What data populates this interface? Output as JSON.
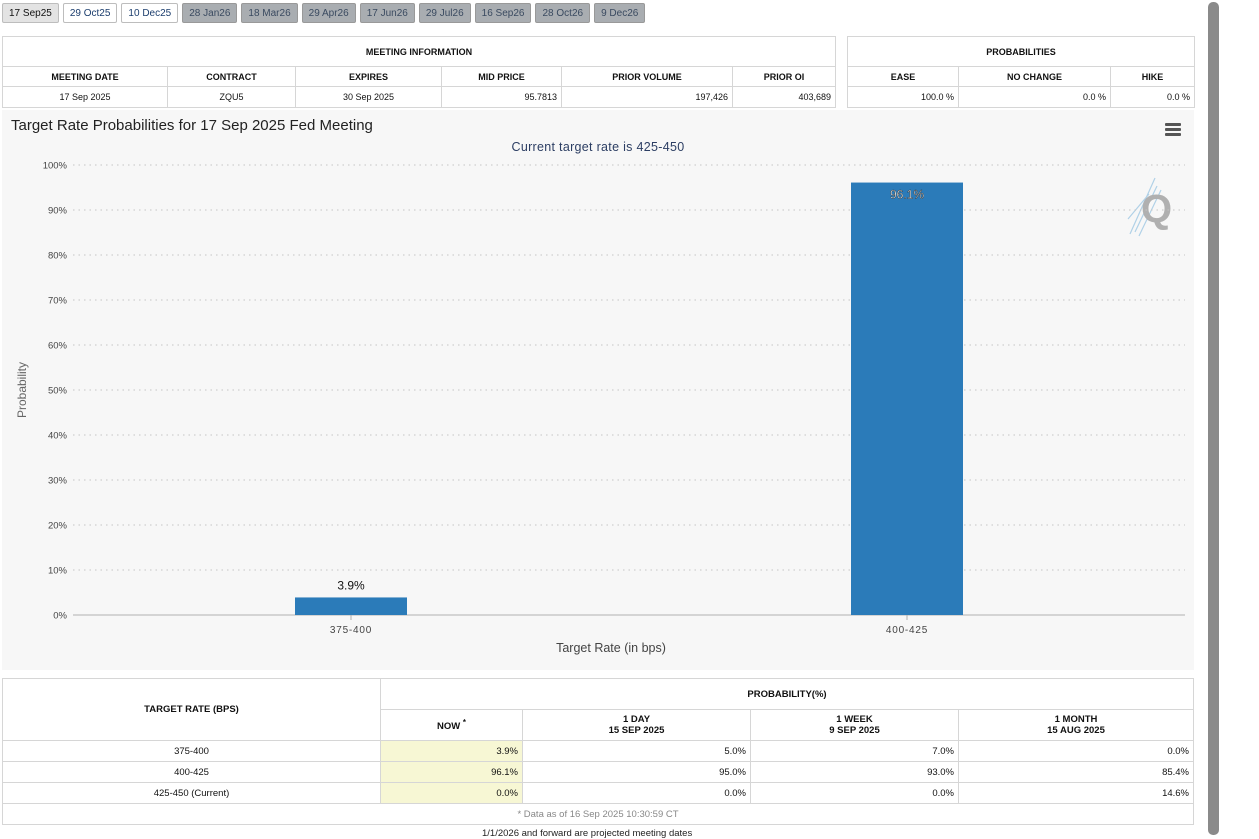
{
  "tabs": [
    {
      "label": "17 Sep25",
      "state": "selected"
    },
    {
      "label": "29 Oct25",
      "state": "available"
    },
    {
      "label": "10 Dec25",
      "state": "available"
    },
    {
      "label": "28 Jan26",
      "state": "disabled"
    },
    {
      "label": "18 Mar26",
      "state": "disabled"
    },
    {
      "label": "29 Apr26",
      "state": "disabled"
    },
    {
      "label": "17 Jun26",
      "state": "disabled"
    },
    {
      "label": "29 Jul26",
      "state": "disabled"
    },
    {
      "label": "16 Sep26",
      "state": "disabled"
    },
    {
      "label": "28 Oct26",
      "state": "disabled"
    },
    {
      "label": "9 Dec26",
      "state": "disabled"
    }
  ],
  "meeting_info": {
    "title": "MEETING INFORMATION",
    "headers": [
      "MEETING DATE",
      "CONTRACT",
      "EXPIRES",
      "MID PRICE",
      "PRIOR VOLUME",
      "PRIOR OI"
    ],
    "row": [
      "17 Sep 2025",
      "ZQU5",
      "30 Sep 2025",
      "95.7813",
      "197,426",
      "403,689"
    ]
  },
  "probabilities": {
    "title": "PROBABILITIES",
    "headers": [
      "EASE",
      "NO CHANGE",
      "HIKE"
    ],
    "row": [
      "100.0 %",
      "0.0 %",
      "0.0 %"
    ]
  },
  "chart": {
    "title": "Target Rate Probabilities for 17 Sep 2025 Fed Meeting",
    "subtitle": "Current target rate is 425-450"
  },
  "chart_data": {
    "type": "bar",
    "title": "Target Rate Probabilities for 17 Sep 2025 Fed Meeting",
    "subtitle": "Current target rate is 425-450",
    "categories": [
      "375-400",
      "400-425"
    ],
    "values": [
      3.9,
      96.1
    ],
    "data_labels": [
      "3.9%",
      "96.1%"
    ],
    "xlabel": "Target Rate (in bps)",
    "ylabel": "Probability",
    "ylim": [
      0,
      100
    ],
    "yticks": [
      "0%",
      "10%",
      "20%",
      "30%",
      "40%",
      "50%",
      "60%",
      "70%",
      "80%",
      "90%",
      "100%"
    ],
    "grid": true,
    "bar_color": "#2b7bb9"
  },
  "history": {
    "col_rate": "TARGET RATE (BPS)",
    "prob_title": "PROBABILITY(%)",
    "cols": [
      {
        "label": "NOW",
        "mark": "*",
        "date": ""
      },
      {
        "label": "1 DAY",
        "date": "15 SEP 2025"
      },
      {
        "label": "1 WEEK",
        "date": "9 SEP 2025"
      },
      {
        "label": "1 MONTH",
        "date": "15 AUG 2025"
      }
    ],
    "rows": [
      {
        "rate": "375-400",
        "values": [
          "3.9%",
          "5.0%",
          "7.0%",
          "0.0%"
        ]
      },
      {
        "rate": "400-425",
        "values": [
          "96.1%",
          "95.0%",
          "93.0%",
          "85.4%"
        ]
      },
      {
        "rate": "425-450 (Current)",
        "values": [
          "0.0%",
          "0.0%",
          "0.0%",
          "14.6%"
        ]
      }
    ],
    "note": "* Data as of 16 Sep 2025 10:30:59 CT"
  },
  "footer_text": "1/1/2026 and forward are projected meeting dates"
}
